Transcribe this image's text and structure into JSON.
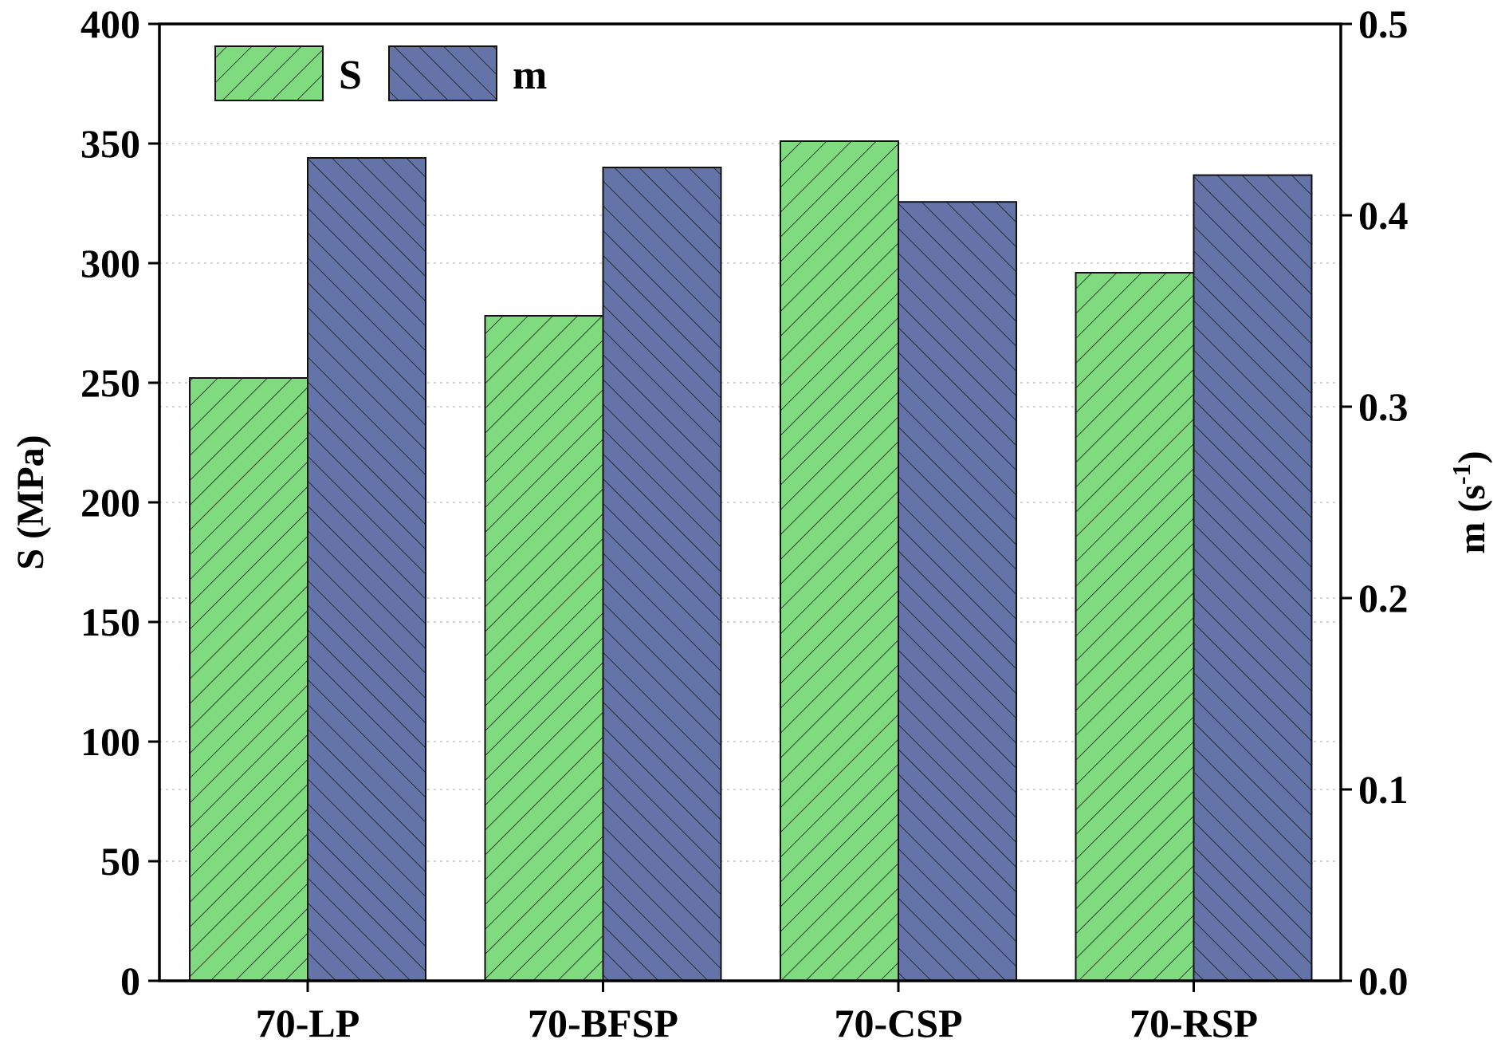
{
  "chart_data": {
    "type": "bar",
    "categories": [
      "70-LP",
      "70-BFSP",
      "70-CSP",
      "70-RSP"
    ],
    "series": [
      {
        "name": "S",
        "axis": "left",
        "color": "#80db80",
        "hatch": "forward-diagonal",
        "values": [
          252,
          278,
          351,
          296
        ]
      },
      {
        "name": "m",
        "axis": "right",
        "color": "#6474a8",
        "hatch": "backward-diagonal",
        "values": [
          0.43,
          0.425,
          0.407,
          0.421
        ]
      }
    ],
    "left_axis": {
      "label": "S (MPa)",
      "ylim": [
        0,
        400
      ],
      "ticks": [
        "0",
        "50",
        "100",
        "150",
        "200",
        "250",
        "300",
        "350",
        "400"
      ]
    },
    "right_axis": {
      "label_main": "m (s",
      "label_sup": "-1",
      "label_close": ")",
      "ylim": [
        0,
        0.5
      ],
      "ticks": [
        "0.0",
        "0.1",
        "0.2",
        "0.3",
        "0.4",
        "0.5"
      ]
    },
    "gridlines": "dotted horizontal",
    "legend_position": "top-left"
  }
}
